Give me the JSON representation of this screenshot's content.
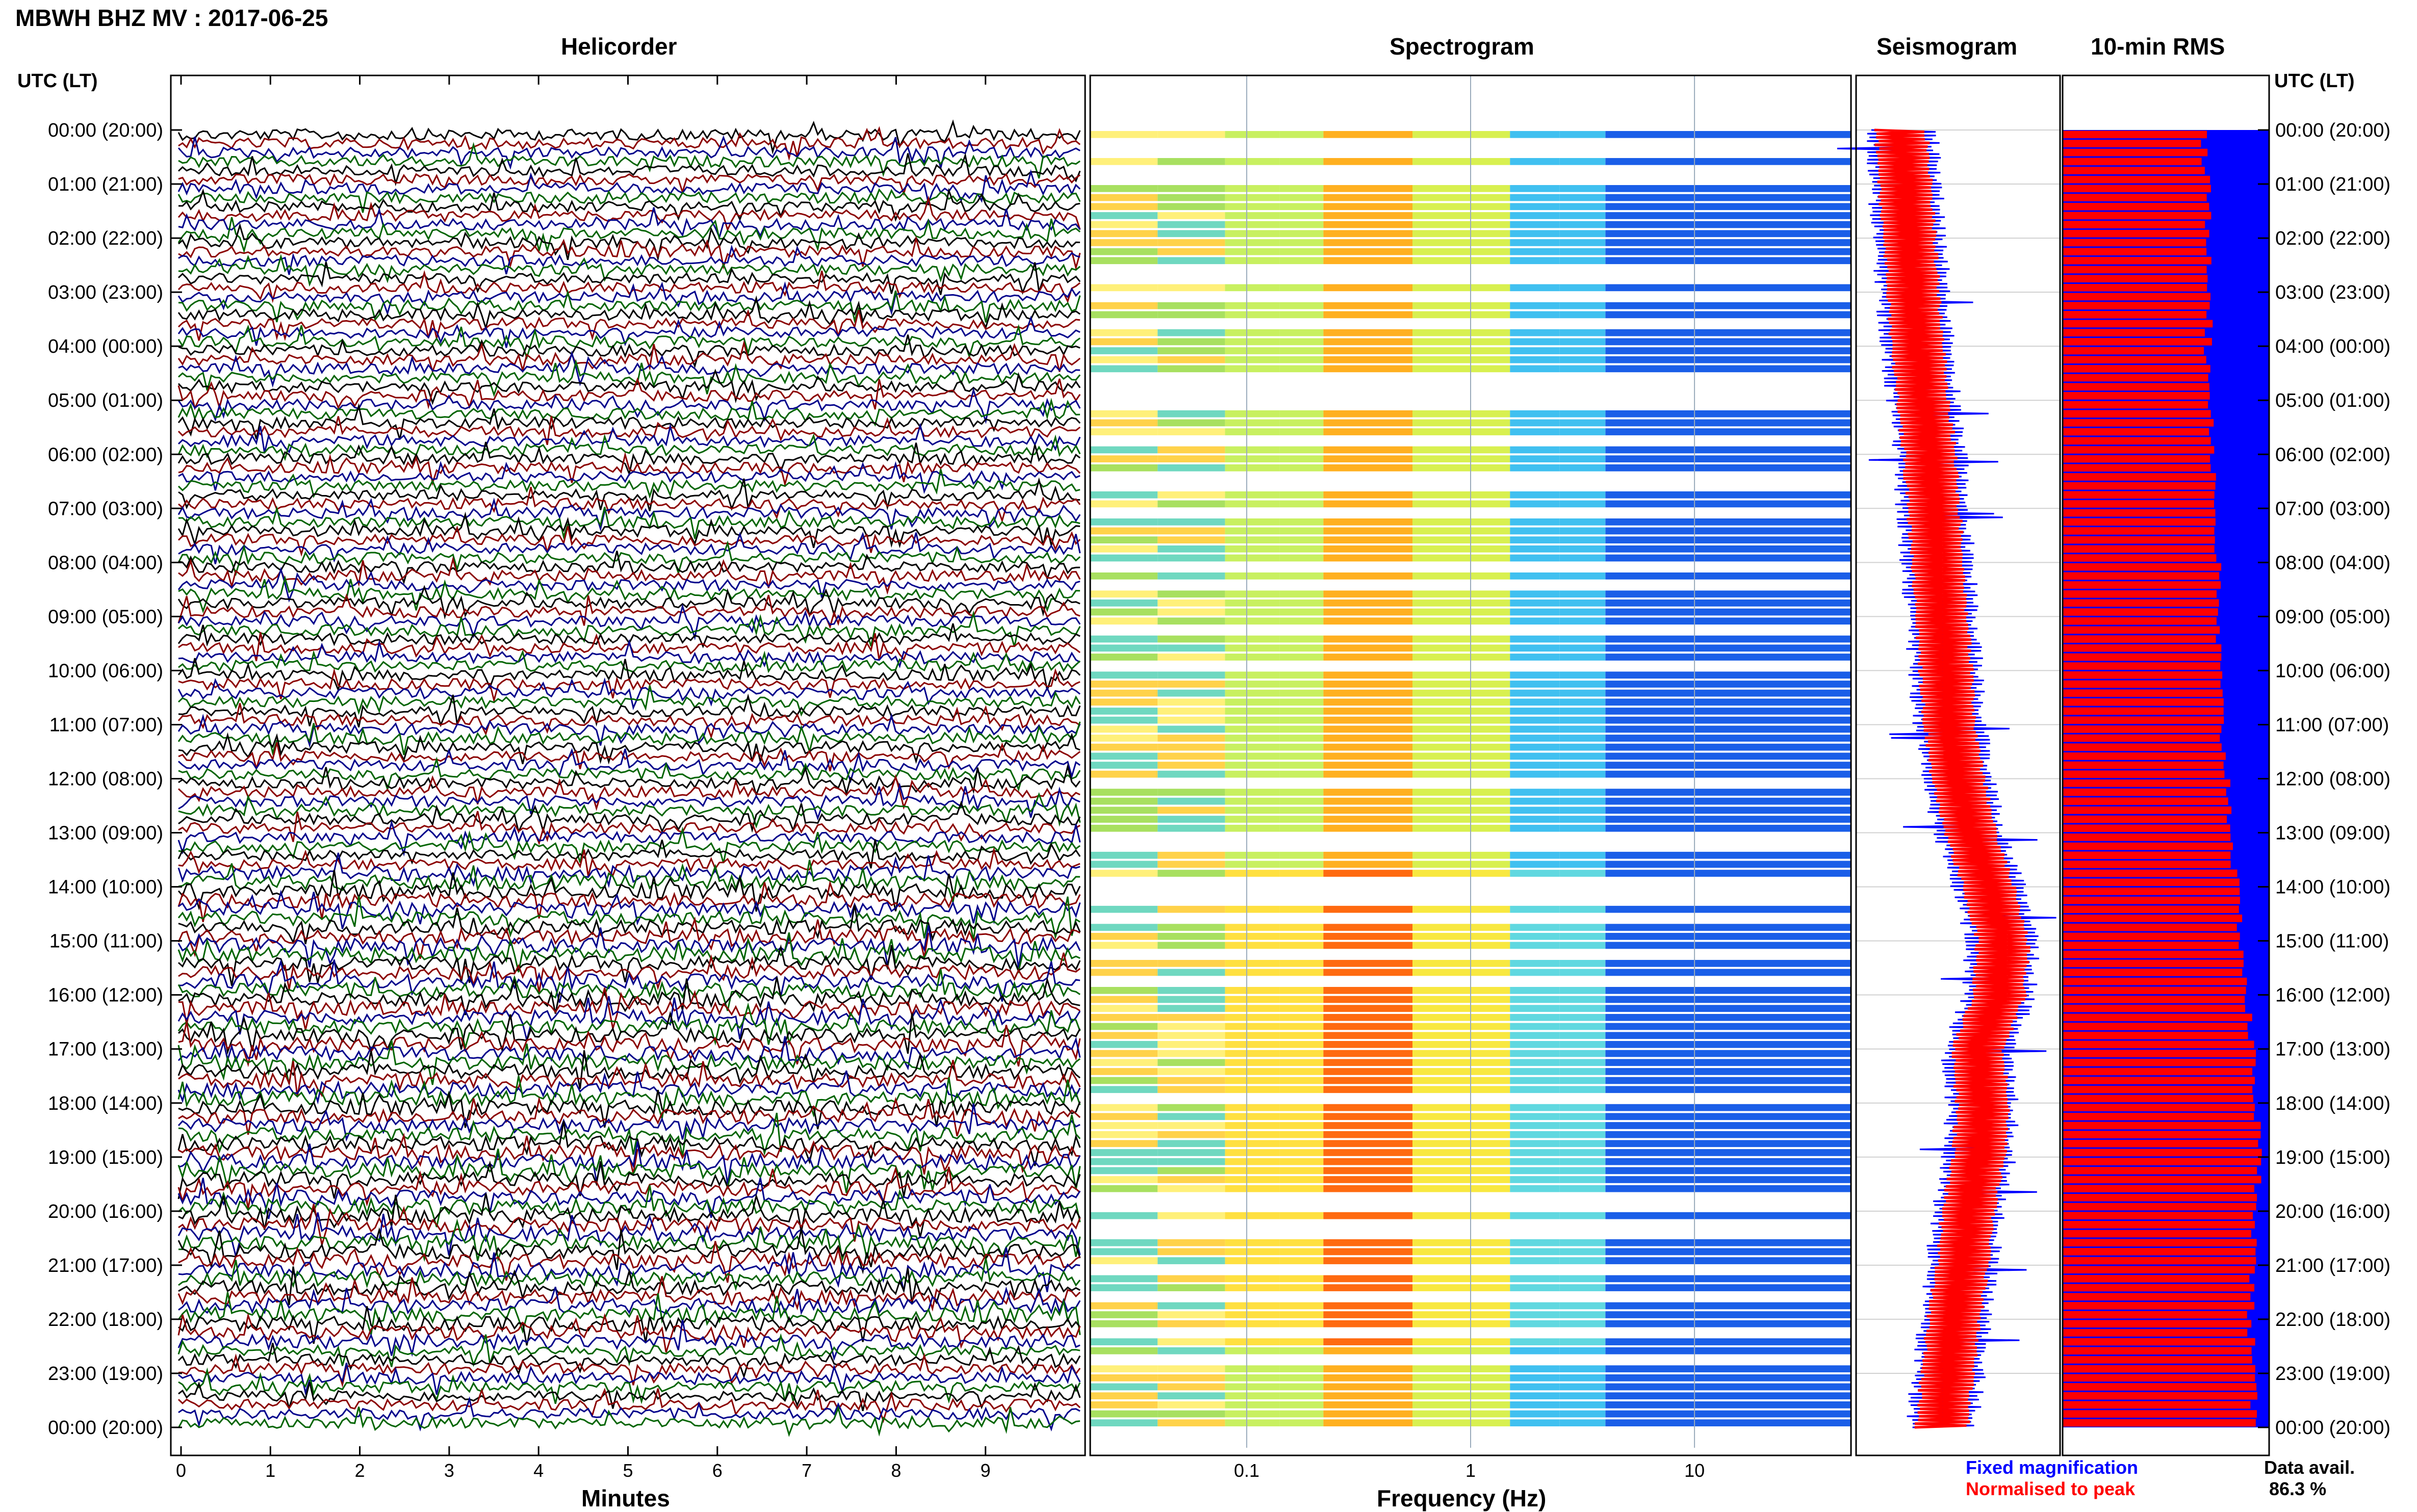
{
  "header": {
    "title": "MBWH BHZ MV : 2017-06-25",
    "utc_label_left": "UTC (LT)",
    "utc_label_right": "UTC (LT)"
  },
  "panels": {
    "helicorder": "Helicorder",
    "spectrogram": "Spectrogram",
    "seismogram": "Seismogram",
    "rms": "10-min RMS"
  },
  "axes": {
    "minutes_label": "Minutes",
    "frequency_label": "Frequency (Hz)"
  },
  "legend": {
    "fixed": "Fixed magnification",
    "normalised": "Normalised to peak",
    "data_avail_label": "Data avail.",
    "data_avail_value": "86.3 %"
  },
  "colors": {
    "trace_colors": [
      "#000000",
      "#8b0000",
      "#00008b",
      "#006400"
    ],
    "fixed": "#0000ff",
    "normalised": "#ff0000"
  },
  "chart_data": [
    {
      "type": "line",
      "name": "helicorder",
      "title": "Helicorder",
      "xlabel": "Minutes",
      "x_ticks": [
        "0",
        "1",
        "2",
        "3",
        "4",
        "5",
        "6",
        "7",
        "8",
        "9"
      ],
      "xlim": [
        0,
        10
      ],
      "y_ticks": [
        "00:00 (20:00)",
        "01:00 (21:00)",
        "02:00 (22:00)",
        "03:00 (23:00)",
        "04:00 (00:00)",
        "05:00 (01:00)",
        "06:00 (02:00)",
        "07:00 (03:00)",
        "08:00 (04:00)",
        "09:00 (05:00)",
        "10:00 (06:00)",
        "11:00 (07:00)",
        "12:00 (08:00)",
        "13:00 (09:00)",
        "14:00 (10:00)",
        "15:00 (11:00)",
        "16:00 (12:00)",
        "17:00 (13:00)",
        "18:00 (14:00)",
        "19:00 (15:00)",
        "20:00 (16:00)",
        "21:00 (17:00)",
        "22:00 (18:00)",
        "23:00 (19:00)",
        "00:00 (20:00)"
      ],
      "rows_per_hour": 6
    },
    {
      "type": "heatmap",
      "name": "spectrogram",
      "title": "Spectrogram",
      "xlabel": "Frequency (Hz)",
      "x_scale": "log",
      "xlim": [
        0.02,
        50
      ],
      "x_ticks": [
        "0.1",
        "1",
        "10"
      ],
      "gap_hours": [
        [
          4.5,
          5.1
        ],
        [
          13.0,
          13.3
        ]
      ]
    },
    {
      "type": "line",
      "name": "seismogram",
      "title": "Seismogram",
      "series": [
        {
          "name": "Fixed magnification",
          "color": "#0000ff"
        },
        {
          "name": "Normalised to peak",
          "color": "#ff0000"
        }
      ],
      "center_by_hour": [
        0.22,
        0.24,
        0.26,
        0.28,
        0.3,
        0.33,
        0.36,
        0.38,
        0.4,
        0.42,
        0.44,
        0.46,
        0.5,
        0.56,
        0.65,
        0.72,
        0.7,
        0.6,
        0.62,
        0.6,
        0.55,
        0.52,
        0.48,
        0.45,
        0.42
      ]
    },
    {
      "type": "bar",
      "name": "rms",
      "title": "10-min RMS",
      "data_availability_percent": 86.3,
      "rms_fraction_by_hour": [
        0.68,
        0.7,
        0.71,
        0.72,
        0.7,
        0.72,
        0.73,
        0.74,
        0.75,
        0.75,
        0.76,
        0.77,
        0.8,
        0.82,
        0.84,
        0.87,
        0.89,
        0.92,
        0.94,
        0.95,
        0.94,
        0.92,
        0.91,
        0.92,
        0.93
      ]
    }
  ]
}
